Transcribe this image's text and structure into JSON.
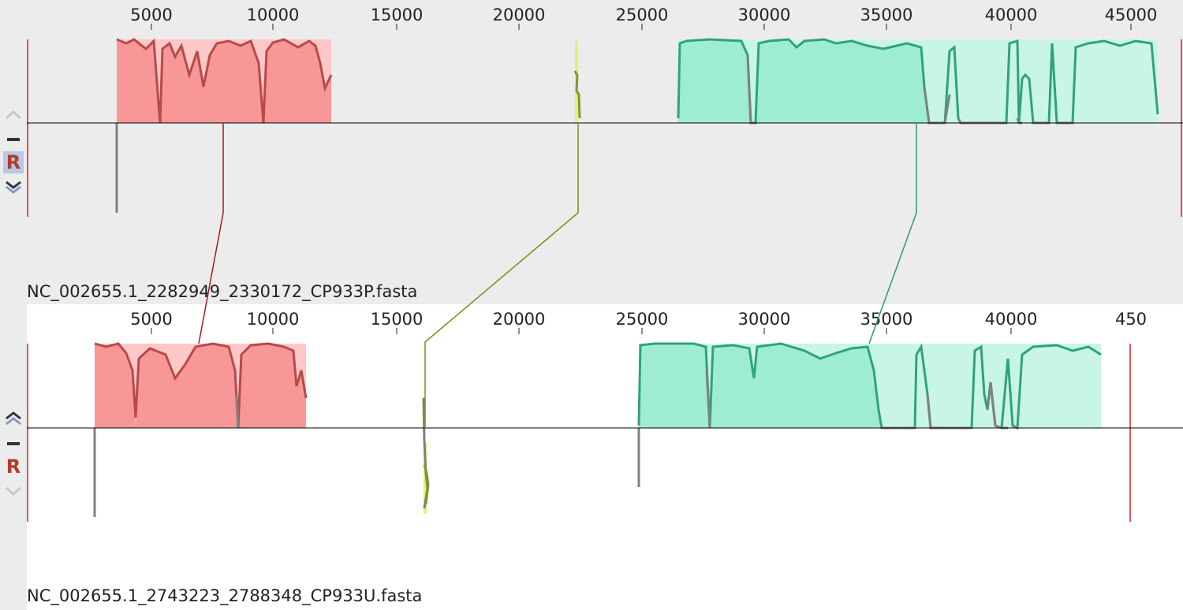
{
  "viewer": "Mauve genome alignment",
  "colors": {
    "block1": "#e03a3a",
    "block1_fill": "#ffc8c8",
    "block2": "#9cc820",
    "block3": "#2fa37a",
    "block3_fill": "#c8f5e6",
    "gap": "#808080",
    "boundary": "#d02020",
    "center_line": "#000000",
    "panel1_bg": "#ececec",
    "panel2_bg": "#ffffff"
  },
  "panels": [
    {
      "name": "NC_002655.1_2282949_2330172_CP933P.fasta",
      "ticks": [
        "5000",
        "10000",
        "15000",
        "20000",
        "25000",
        "30000",
        "35000",
        "40000",
        "45000"
      ],
      "controls": {
        "up": "up-chevron-icon",
        "minus": "minus-icon",
        "reset": "R",
        "down": "down-chevron-icon"
      }
    },
    {
      "name": "NC_002655.1_2743223_2788348_CP933U.fasta",
      "ticks": [
        "5000",
        "10000",
        "15000",
        "20000",
        "25000",
        "30000",
        "35000",
        "40000",
        "450"
      ],
      "controls": {
        "up": "up-chevron-icon",
        "minus": "minus-icon",
        "reset": "R",
        "down": "down-chevron-icon"
      }
    }
  ]
}
